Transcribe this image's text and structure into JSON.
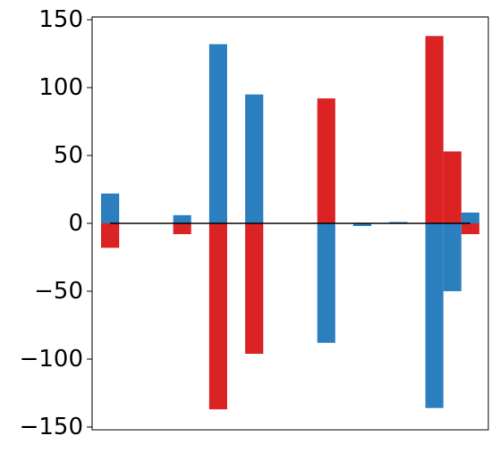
{
  "chart_data": {
    "type": "bar",
    "title": "",
    "xlabel": "",
    "ylabel": "",
    "ylim": [
      -152,
      152
    ],
    "xlim": [
      -0.5,
      10.5
    ],
    "yticks": [
      150,
      100,
      50,
      0,
      -50,
      -100,
      -150
    ],
    "ytick_labels": [
      "150",
      "100",
      "50",
      "0",
      "−50",
      "−100",
      "−150"
    ],
    "xticks_visible": false,
    "grid": false,
    "legend": "none",
    "baseline": 0,
    "bar_width": 0.5,
    "series": [
      {
        "color": "#2c7fbf",
        "values": [
          22,
          0,
          6,
          132,
          95,
          0,
          -88,
          -2,
          1,
          -136,
          8
        ],
        "x_offset": 0
      },
      {
        "color": "#db2324",
        "values": [
          -18,
          0,
          -8,
          -137,
          -96,
          0,
          92,
          0,
          0,
          138,
          -8
        ],
        "x_offset": 0
      },
      {
        "color": "#2c7fbf",
        "values": [
          0,
          0,
          0,
          0,
          0,
          0,
          0,
          0,
          0,
          -50,
          0
        ],
        "x_offset": 0.5
      },
      {
        "color": "#db2324",
        "values": [
          0,
          0,
          0,
          0,
          0,
          0,
          0,
          0,
          0,
          53,
          0
        ],
        "x_offset": 0.5
      }
    ],
    "zero_line_color": "#000000"
  }
}
